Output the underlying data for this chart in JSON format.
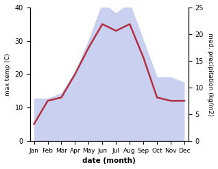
{
  "months": [
    "Jan",
    "Feb",
    "Mar",
    "Apr",
    "May",
    "Jun",
    "Jul",
    "Aug",
    "Sep",
    "Oct",
    "Nov",
    "Dec"
  ],
  "temperature": [
    5,
    12,
    13,
    20,
    28,
    35,
    33,
    35,
    25,
    13,
    12,
    12
  ],
  "precipitation": [
    8,
    8,
    9,
    13,
    19,
    26,
    24,
    26,
    19,
    12,
    12,
    11
  ],
  "temp_ylim": [
    0,
    40
  ],
  "precip_ylim": [
    0,
    25
  ],
  "temp_color": "#b03040",
  "precip_color_fill": "#c0c8ee",
  "precip_alpha": 0.85,
  "xlabel": "date (month)",
  "ylabel_left": "max temp (C)",
  "ylabel_right": "med. precipitation (kg/m2)",
  "temp_linewidth": 1.8,
  "background_color": "#ffffff",
  "left_ticks": [
    0,
    10,
    20,
    30,
    40
  ],
  "right_ticks": [
    0,
    5,
    10,
    15,
    20,
    25
  ]
}
